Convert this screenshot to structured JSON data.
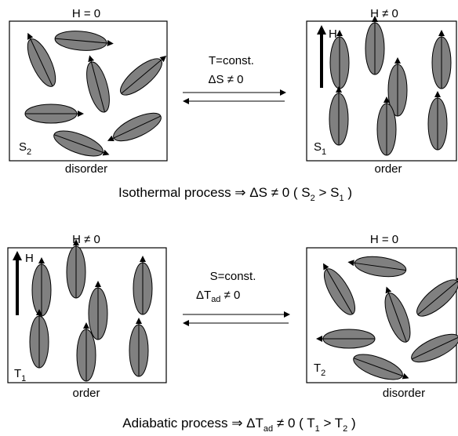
{
  "top": {
    "left_field": "H = 0",
    "right_field": "H ≠ 0",
    "condition": "T=const.",
    "change": "ΔS ≠ 0",
    "left_state": "disorder",
    "right_state": "order",
    "field_arrow": "H",
    "left_symbol": [
      "S",
      "2"
    ],
    "right_symbol": [
      "S",
      "1"
    ],
    "caption": [
      "Isothermal process ⇒  ΔS ≠ 0 ( S",
      "2",
      " > S",
      "1",
      " )"
    ]
  },
  "bottom": {
    "left_field": "H ≠ 0",
    "right_field": "H = 0",
    "condition": "S=const.",
    "change": [
      "ΔT",
      "ad",
      " ≠ 0"
    ],
    "left_state": "order",
    "right_state": "disorder",
    "field_arrow": "H",
    "left_symbol": [
      "T",
      "1"
    ],
    "right_symbol": [
      "T",
      "2"
    ],
    "caption": [
      "Adiabatic process ⇒  ΔT",
      "ad",
      " ≠ 0 ( T",
      "1",
      " > T",
      "2",
      " )"
    ]
  }
}
